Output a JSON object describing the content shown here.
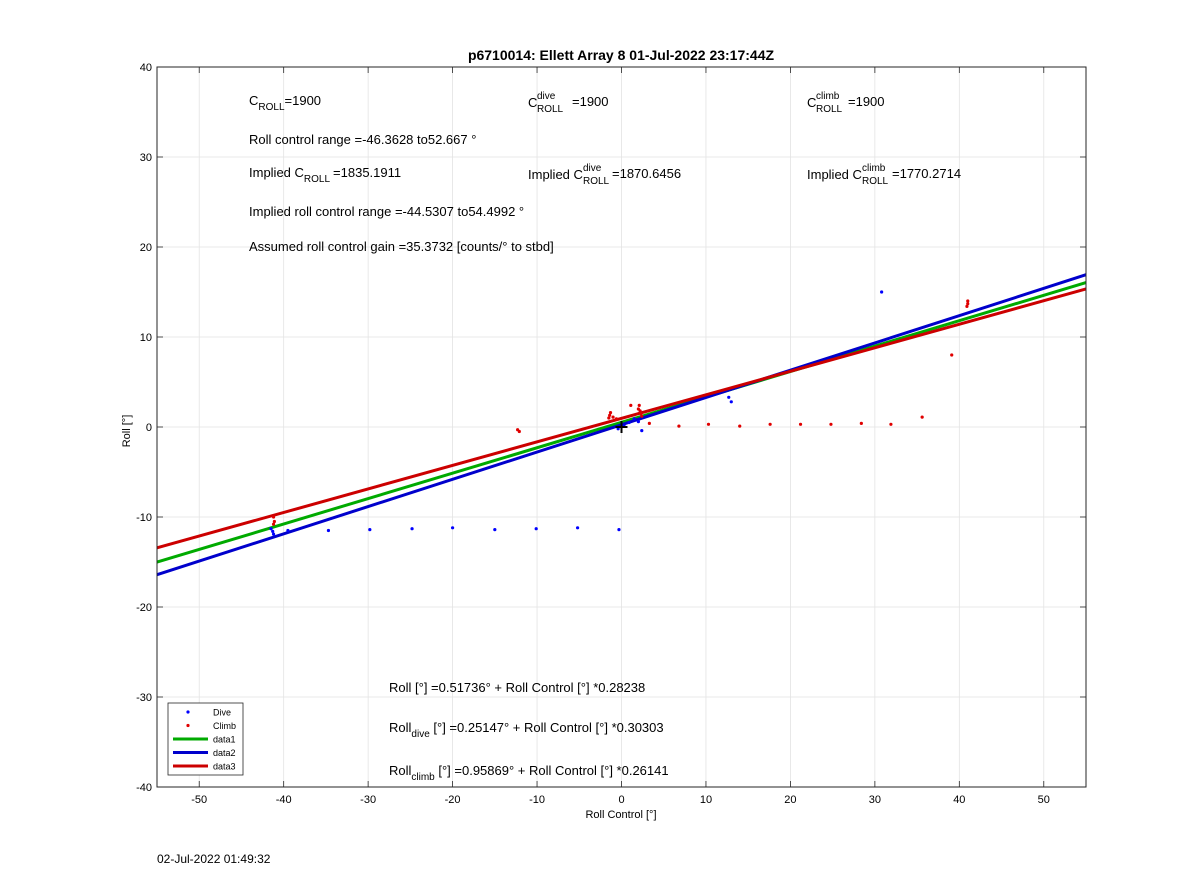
{
  "chart_data": {
    "type": "scatter",
    "title": "p6710014: Ellett Array 8 01-Jul-2022 23:17:44Z",
    "xlabel": "Roll Control [°]",
    "ylabel": "Roll [°]",
    "xlim": [
      -55,
      55
    ],
    "ylim": [
      -40,
      40
    ],
    "xticks": [
      -50,
      -40,
      -30,
      -20,
      -10,
      0,
      10,
      20,
      30,
      40,
      50
    ],
    "yticks": [
      -40,
      -30,
      -20,
      -10,
      0,
      10,
      20,
      30,
      40
    ],
    "grid": true,
    "legend_position": "bottom-left",
    "series": [
      {
        "name": "Dive",
        "kind": "points",
        "color": "#0000ff",
        "points": [
          [
            -41.5,
            -11.3
          ],
          [
            -41.3,
            -11.6
          ],
          [
            -41.2,
            -11.9
          ],
          [
            -39.5,
            -11.5
          ],
          [
            -34.7,
            -11.5
          ],
          [
            -29.8,
            -11.4
          ],
          [
            -24.8,
            -11.3
          ],
          [
            -20.0,
            -11.2
          ],
          [
            -15.0,
            -11.4
          ],
          [
            -10.1,
            -11.3
          ],
          [
            -5.2,
            -11.2
          ],
          [
            -0.3,
            -11.4
          ],
          [
            -0.4,
            -0.2
          ],
          [
            0.3,
            0.1
          ],
          [
            0.9,
            0.5
          ],
          [
            1.5,
            0.9
          ],
          [
            2.0,
            0.6
          ],
          [
            2.4,
            -0.4
          ],
          [
            12.7,
            3.3
          ],
          [
            13.0,
            2.8
          ],
          [
            30.8,
            15.0
          ]
        ]
      },
      {
        "name": "Climb",
        "kind": "points",
        "color": "#e00000",
        "points": [
          [
            -41.2,
            -10.0
          ],
          [
            -41.1,
            -10.5
          ],
          [
            -41.2,
            -10.8
          ],
          [
            -12.3,
            -0.3
          ],
          [
            -12.1,
            -0.5
          ],
          [
            -1.5,
            1.0
          ],
          [
            -1.4,
            1.3
          ],
          [
            -1.3,
            1.6
          ],
          [
            -1.0,
            1.1
          ],
          [
            -0.6,
            0.9
          ],
          [
            1.1,
            2.4
          ],
          [
            2.0,
            2.0
          ],
          [
            2.1,
            2.4
          ],
          [
            2.2,
            1.8
          ],
          [
            2.3,
            1.5
          ],
          [
            2.4,
            1.2
          ],
          [
            3.3,
            0.4
          ],
          [
            6.8,
            0.1
          ],
          [
            10.3,
            0.3
          ],
          [
            14.0,
            0.1
          ],
          [
            17.6,
            0.3
          ],
          [
            21.2,
            0.3
          ],
          [
            24.8,
            0.3
          ],
          [
            28.4,
            0.4
          ],
          [
            31.9,
            0.3
          ],
          [
            35.6,
            1.1
          ],
          [
            39.1,
            8.0
          ],
          [
            40.9,
            13.4
          ],
          [
            41.0,
            13.7
          ],
          [
            41.0,
            14.0
          ]
        ]
      },
      {
        "name": "data1",
        "kind": "line",
        "color": "#00aa00",
        "intercept": 0.51736,
        "slope": 0.28238
      },
      {
        "name": "data2",
        "kind": "line",
        "color": "#0000cc",
        "intercept": 0.25147,
        "slope": 0.30303
      },
      {
        "name": "data3",
        "kind": "line",
        "color": "#cc0000",
        "intercept": 0.95869,
        "slope": 0.26141
      }
    ],
    "origin_marker": {
      "x": 0,
      "y": 0,
      "symbol": "+"
    },
    "annotations": {
      "c_roll": {
        "main": "C",
        "sub": "ROLL",
        "value": "=1900"
      },
      "c_dive": {
        "main": "C",
        "sup": "dive",
        "sub": "ROLL",
        "value": "=1900"
      },
      "c_climb": {
        "main": "C",
        "sup": "climb",
        "sub": "ROLL",
        "value": "=1900"
      },
      "roll_control_range": "Roll control range =-46.3628 to52.667 °",
      "implied_c_roll": {
        "prefix": "Implied C",
        "sub": "ROLL",
        "value": "=1835.1911"
      },
      "implied_c_dive": {
        "prefix": "Implied C",
        "sup": "dive",
        "sub": "ROLL",
        "value": "=1870.6456"
      },
      "implied_c_climb": {
        "prefix": "Implied C",
        "sup": "climb",
        "sub": "ROLL",
        "value": "=1770.2714"
      },
      "implied_range": "Implied roll control range =-44.5307 to54.4992 °",
      "gain": "Assumed roll control gain =35.3732 [counts/° to stbd]",
      "fit_all": {
        "prefix": "Roll [°] =0.51736° + Roll Control [°] *0.28238"
      },
      "fit_dive": {
        "main": "Roll",
        "sub": "dive",
        "rest": " [°] =0.25147° + Roll Control [°] *0.30303"
      },
      "fit_climb": {
        "main": "Roll",
        "sub": "climb",
        "rest": " [°] =0.95869° + Roll Control [°] *0.26141"
      }
    }
  },
  "footer": {
    "timestamp": "02-Jul-2022 01:49:32"
  }
}
